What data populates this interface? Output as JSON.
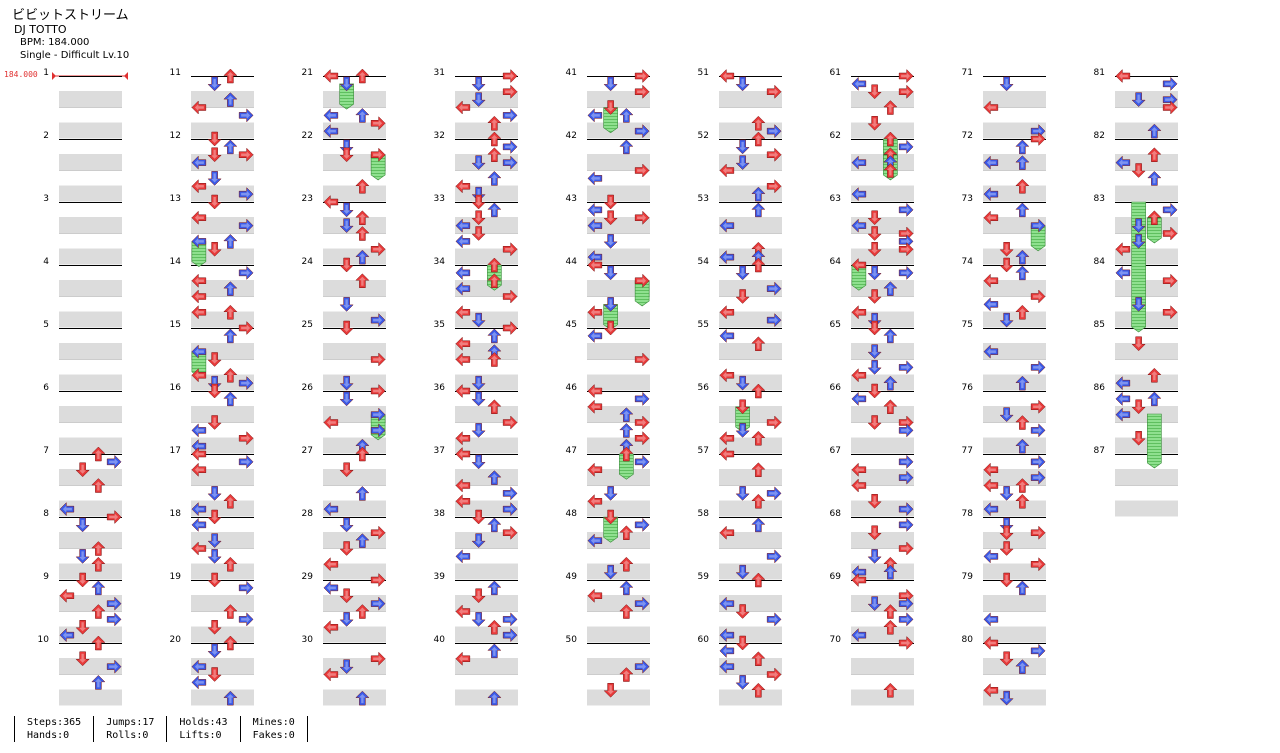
{
  "song": {
    "title": "ビビットストリーム",
    "artist": "DJ TOTTO",
    "bpm_text": "BPM: 184.000",
    "difficulty_text": "Single - Difficult Lv.10"
  },
  "bpm_marker": "184.000",
  "chart_data": {
    "type": "step-chart",
    "total_measures": 87,
    "measures_per_column": 10,
    "lanes": [
      "left",
      "down",
      "up",
      "right"
    ],
    "colors": {
      "quarter": "#e83a3a",
      "eighth": "#3a5ae8",
      "hold": "#7ed97e",
      "measure_band": "#dcdcdc"
    }
  },
  "stats": [
    {
      "name": "steps",
      "label": "Steps",
      "value": "365"
    },
    {
      "name": "hands",
      "label": "Hands",
      "value": "0"
    },
    {
      "name": "jumps",
      "label": "Jumps",
      "value": "17"
    },
    {
      "name": "rolls",
      "label": "Rolls",
      "value": "0"
    },
    {
      "name": "holds",
      "label": "Holds",
      "value": "43"
    },
    {
      "name": "lifts",
      "label": "Lifts",
      "value": "0"
    },
    {
      "name": "mines",
      "label": "Mines",
      "value": "0"
    },
    {
      "name": "fakes",
      "label": "Fakes",
      "value": "0"
    }
  ]
}
